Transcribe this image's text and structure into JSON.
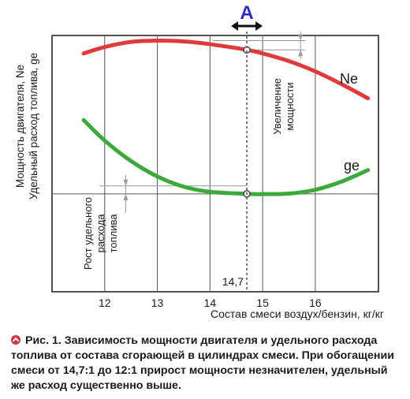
{
  "chart_data": {
    "type": "line",
    "xlabel": "Состав смеси воздух/бензин, кг/кг",
    "ylabel_line1": "Мощность двигателя, Ne",
    "ylabel_line2": "Удельный расход топлива, ge",
    "xticks": [
      "12",
      "13",
      "14",
      "15",
      "16"
    ],
    "xlim": [
      11.0,
      17.2
    ],
    "marker_x": 14.7,
    "marker_label": "14,7",
    "range_label": "A",
    "series": [
      {
        "name": "Ne",
        "color": "#e03a3a",
        "x": [
          11.6,
          12.0,
          12.5,
          13.0,
          13.5,
          14.0,
          14.7,
          15.0,
          15.5,
          16.0,
          16.5,
          17.0
        ],
        "y": [
          0.93,
          0.955,
          0.975,
          0.98,
          0.977,
          0.966,
          0.944,
          0.93,
          0.9,
          0.86,
          0.81,
          0.755
        ]
      },
      {
        "name": "ge",
        "color": "#3aaa3a",
        "x": [
          11.6,
          12.0,
          12.5,
          13.0,
          13.5,
          14.0,
          14.7,
          15.0,
          15.5,
          16.0,
          16.5,
          17.0
        ],
        "y": [
          0.67,
          0.59,
          0.51,
          0.45,
          0.41,
          0.39,
          0.382,
          0.381,
          0.383,
          0.398,
          0.43,
          0.475
        ]
      }
    ],
    "annotations": {
      "power_increase": "Увеличение мощности",
      "consumption_increase": "Рост удельного расхода топлива"
    },
    "grid": true
  },
  "caption": {
    "icon": "bullet-arrow-icon",
    "text": "Рис. 1. Зависимость мощности двигателя и удельного расхода топлива от состава сгорающей в цилиндрах смеси. При обогащении смеси от 14,7:1 до 12:1 прирост мощности незначителен, удельный же расход существенно выше."
  }
}
